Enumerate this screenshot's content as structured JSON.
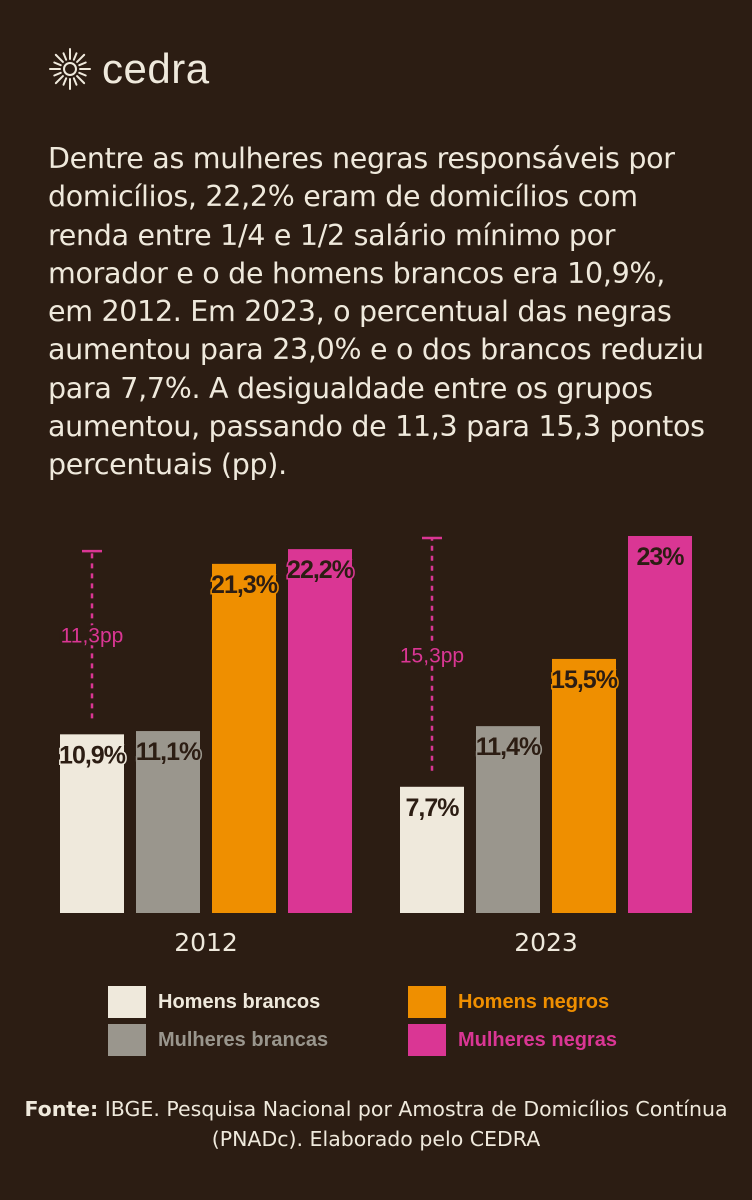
{
  "brand": {
    "name": "cedra",
    "logo_icon": "sun-burst-icon"
  },
  "intro_text": "Dentre as mulheres negras responsáveis por domicílios, 22,2% eram de domicílios com renda entre 1/4 e 1/2 salário mínimo por morador e o de homens brancos era 10,9%, em 2012. Em 2023, o percentual das negras aumentou para 23,0% e o dos brancos reduziu para 7,7%. A desigualdade entre os grupos aumentou, passando de 11,3 para 15,3 pontos percentuais (pp).",
  "colors": {
    "background": "#2c1d13",
    "text": "#efe9dc",
    "homens_brancos": "#efe9dc",
    "mulheres_brancas": "#9a968d",
    "homens_negros": "#ef8f00",
    "mulheres_negras": "#da3694"
  },
  "chart_data": {
    "type": "bar",
    "categories": [
      "2012",
      "2023"
    ],
    "series": [
      {
        "name": "Homens brancos",
        "values": [
          10.9,
          7.7
        ],
        "labels": [
          "10,9%",
          "7,7%"
        ]
      },
      {
        "name": "Mulheres brancas",
        "values": [
          11.1,
          11.4
        ],
        "labels": [
          "11,1%",
          "11,4%"
        ]
      },
      {
        "name": "Homens negros",
        "values": [
          21.3,
          15.5
        ],
        "labels": [
          "21,3%",
          "15,5%"
        ]
      },
      {
        "name": "Mulheres negras",
        "values": [
          22.2,
          23.0
        ],
        "labels": [
          "22,2%",
          "23%"
        ]
      }
    ],
    "gap_annotations": [
      "11,3pp",
      "15,3pp"
    ],
    "ylim": [
      0,
      23
    ],
    "grid": false,
    "title": "",
    "xlabel": "",
    "ylabel": ""
  },
  "legend": [
    {
      "label": "Homens brancos",
      "color": "#efe9dc"
    },
    {
      "label": "Homens negros",
      "color": "#ef8f00"
    },
    {
      "label": "Mulheres brancas",
      "color": "#9a968d"
    },
    {
      "label": "Mulheres negras",
      "color": "#da3694"
    }
  ],
  "source": {
    "prefix": "Fonte:",
    "text": " IBGE. Pesquisa Nacional por Amostra de Domicílios Contínua (PNADc). Elaborado pelo CEDRA"
  }
}
